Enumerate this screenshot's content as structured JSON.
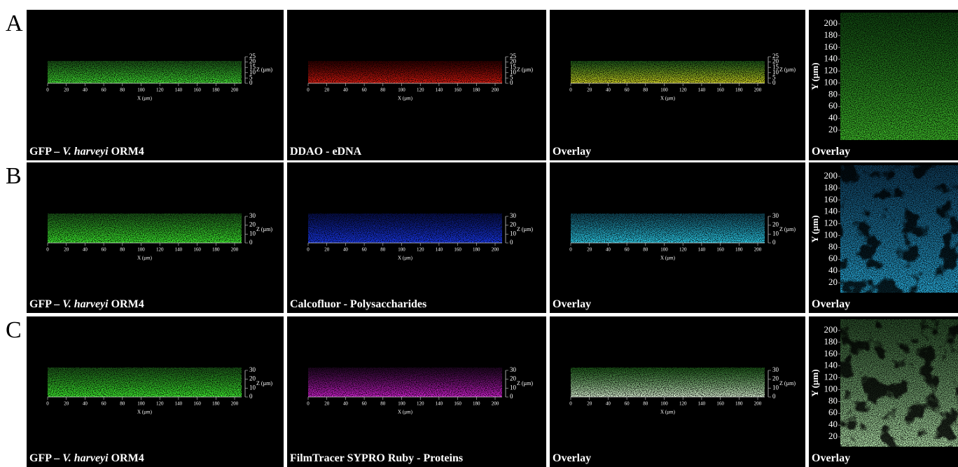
{
  "axes": {
    "x_ticks": [
      0,
      20,
      40,
      60,
      80,
      100,
      120,
      140,
      160,
      180,
      200
    ],
    "x_label": "X (µm)",
    "z_label": "Z (µm)",
    "y_label": "Y (µm)",
    "y_ticks": [
      20,
      40,
      60,
      80,
      100,
      120,
      140,
      160,
      180,
      200
    ]
  },
  "rows": [
    {
      "label": "A",
      "z_ticks": [
        0,
        5,
        10,
        15,
        20,
        25
      ],
      "panels": [
        {
          "caption": [
            {
              "text": "GFP – "
            },
            {
              "text": "V. harveyi",
              "italic": true
            },
            {
              "text": " ORM4"
            }
          ],
          "colors": [
            "#2f9a2a",
            "#44ee33"
          ]
        },
        {
          "caption": [
            {
              "text": "DDAO - eDNA"
            }
          ],
          "colors": [
            "#550000",
            "#ee1b10"
          ]
        },
        {
          "caption": [
            {
              "text": "Overlay"
            }
          ],
          "colors": [
            "#2f9a2a",
            "#e0e020"
          ]
        },
        {
          "caption": [
            {
              "text": "Overlay"
            }
          ],
          "colors": [
            "#1e7d1e",
            "#3fbf2a"
          ]
        }
      ]
    },
    {
      "label": "B",
      "z_ticks": [
        0,
        10,
        20,
        30
      ],
      "panels": [
        {
          "caption": [
            {
              "text": "GFP – "
            },
            {
              "text": "V. harveyi",
              "italic": true
            },
            {
              "text": " ORM4"
            }
          ],
          "colors": [
            "#2f9a2a",
            "#40ff30"
          ]
        },
        {
          "caption": [
            {
              "text": "Calcofluor - Polysaccharides"
            }
          ],
          "colors": [
            "#0a1a88",
            "#1a3cff"
          ]
        },
        {
          "caption": [
            {
              "text": "Overlay"
            }
          ],
          "colors": [
            "#1b7fa0",
            "#30e0ff"
          ]
        },
        {
          "caption": [
            {
              "text": "Overlay"
            }
          ],
          "colors": [
            "#1a6aa0",
            "#2ab0e0"
          ]
        }
      ]
    },
    {
      "label": "C",
      "z_ticks": [
        0,
        10,
        20,
        30
      ],
      "panels": [
        {
          "caption": [
            {
              "text": "GFP – "
            },
            {
              "text": "V. harveyi",
              "italic": true
            },
            {
              "text": " ORM4"
            }
          ],
          "colors": [
            "#2f9a2a",
            "#40ff30"
          ]
        },
        {
          "caption": [
            {
              "text": "FilmTracer SYPRO Ruby - Proteins"
            }
          ],
          "colors": [
            "#3a0a40",
            "#e020e0"
          ]
        },
        {
          "caption": [
            {
              "text": "Overlay"
            }
          ],
          "colors": [
            "#2f9a2a",
            "#e8ffe0"
          ]
        },
        {
          "caption": [
            {
              "text": "Overlay"
            }
          ],
          "colors": [
            "#4a8a4a",
            "#b8e8b0"
          ]
        }
      ]
    }
  ]
}
